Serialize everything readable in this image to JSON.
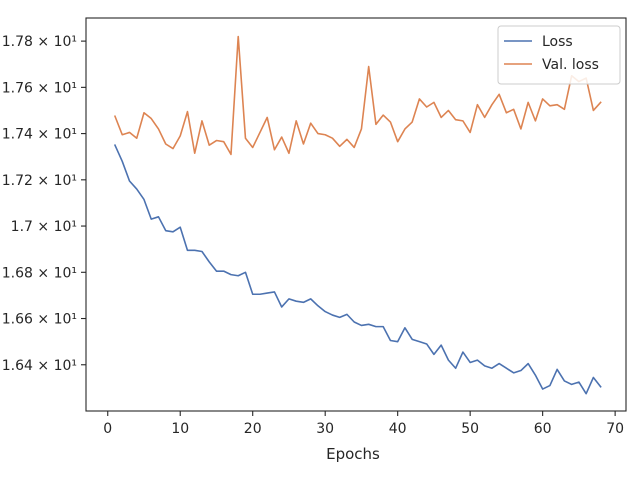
{
  "chart_data": {
    "type": "line",
    "xlabel": "Epochs",
    "ylabel": "",
    "title": "",
    "xlim": [
      -3,
      71.5
    ],
    "ylim": [
      16.2,
      17.9
    ],
    "grid": false,
    "legend_position": "top-right",
    "x_ticks": [
      {
        "value": 0,
        "label": "0"
      },
      {
        "value": 10,
        "label": "10"
      },
      {
        "value": 20,
        "label": "20"
      },
      {
        "value": 30,
        "label": "30"
      },
      {
        "value": 40,
        "label": "40"
      },
      {
        "value": 50,
        "label": "50"
      },
      {
        "value": 60,
        "label": "60"
      },
      {
        "value": 70,
        "label": "70"
      }
    ],
    "y_ticks": [
      {
        "value": 16.4,
        "label": "1.64 × 10¹"
      },
      {
        "value": 16.6,
        "label": "1.66 × 10¹"
      },
      {
        "value": 16.8,
        "label": "1.68 × 10¹"
      },
      {
        "value": 17.0,
        "label": "1.7 × 10¹"
      },
      {
        "value": 17.2,
        "label": "1.72 × 10¹"
      },
      {
        "value": 17.4,
        "label": "1.74 × 10¹"
      },
      {
        "value": 17.6,
        "label": "1.76 × 10¹"
      },
      {
        "value": 17.8,
        "label": "1.78 × 10¹"
      }
    ],
    "x": [
      1,
      2,
      3,
      4,
      5,
      6,
      7,
      8,
      9,
      10,
      11,
      12,
      13,
      14,
      15,
      16,
      17,
      18,
      19,
      20,
      21,
      22,
      23,
      24,
      25,
      26,
      27,
      28,
      29,
      30,
      31,
      32,
      33,
      34,
      35,
      36,
      37,
      38,
      39,
      40,
      41,
      42,
      43,
      44,
      45,
      46,
      47,
      48,
      49,
      50,
      51,
      52,
      53,
      54,
      55,
      56,
      57,
      58,
      59,
      60,
      61,
      62,
      63,
      64,
      65,
      66,
      67,
      68
    ],
    "series": [
      {
        "name": "Loss",
        "color": "#4c72b0",
        "values": [
          17.35,
          17.28,
          17.195,
          17.16,
          17.115,
          17.03,
          17.04,
          16.98,
          16.975,
          16.995,
          16.895,
          16.895,
          16.89,
          16.845,
          16.805,
          16.805,
          16.79,
          16.785,
          16.8,
          16.705,
          16.705,
          16.71,
          16.715,
          16.65,
          16.685,
          16.675,
          16.67,
          16.685,
          16.655,
          16.63,
          16.615,
          16.605,
          16.618,
          16.585,
          16.57,
          16.575,
          16.565,
          16.565,
          16.505,
          16.5,
          16.56,
          16.51,
          16.5,
          16.49,
          16.445,
          16.485,
          16.42,
          16.385,
          16.455,
          16.41,
          16.42,
          16.395,
          16.385,
          16.405,
          16.385,
          16.365,
          16.375,
          16.405,
          16.355,
          16.295,
          16.31,
          16.38,
          16.33,
          16.315,
          16.325,
          16.275,
          16.345,
          16.305
        ]
      },
      {
        "name": "Val. loss",
        "color": "#dd8452",
        "values": [
          17.475,
          17.395,
          17.405,
          17.38,
          17.49,
          17.465,
          17.42,
          17.355,
          17.335,
          17.39,
          17.495,
          17.315,
          17.455,
          17.35,
          17.37,
          17.365,
          17.31,
          17.82,
          17.38,
          17.34,
          17.405,
          17.47,
          17.33,
          17.385,
          17.315,
          17.455,
          17.355,
          17.445,
          17.4,
          17.395,
          17.38,
          17.345,
          17.375,
          17.34,
          17.42,
          17.69,
          17.44,
          17.48,
          17.45,
          17.365,
          17.42,
          17.45,
          17.55,
          17.515,
          17.535,
          17.47,
          17.5,
          17.46,
          17.455,
          17.405,
          17.525,
          17.47,
          17.525,
          17.57,
          17.49,
          17.505,
          17.42,
          17.535,
          17.455,
          17.55,
          17.52,
          17.525,
          17.505,
          17.65,
          17.625,
          17.64,
          17.5,
          17.535
        ]
      }
    ]
  }
}
